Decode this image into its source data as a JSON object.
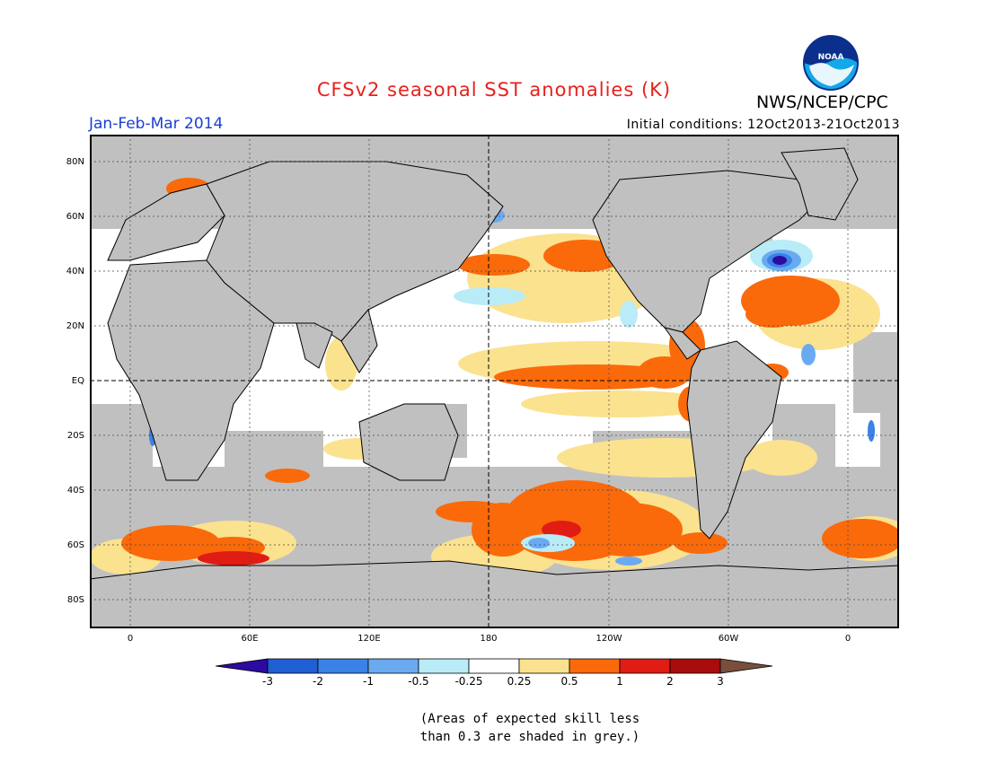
{
  "header": {
    "title": "CFSv2 seasonal SST anomalies (K)",
    "agency": "NWS/NCEP/CPC",
    "period": "Jan-Feb-Mar 2014",
    "initial_conditions": "Initial conditions: 12Oct2013-21Oct2013",
    "logo_text": "NOAA"
  },
  "map": {
    "lat_labels": [
      "80N",
      "60N",
      "40N",
      "20N",
      "EQ",
      "20S",
      "40S",
      "60S",
      "80S"
    ],
    "lon_labels": [
      "0",
      "60E",
      "120E",
      "180",
      "120W",
      "60W",
      "0"
    ],
    "colors": {
      "land": "#c0c0c0",
      "skill_grey": "#c0c0c0",
      "ocean_neutral": "#ffffff"
    }
  },
  "colorbar": {
    "labels": [
      "-3",
      "-2",
      "-1",
      "-0.5",
      "-0.25",
      "0.25",
      "0.5",
      "1",
      "2",
      "3"
    ],
    "colors": [
      "#2d0aa0",
      "#1f5fd4",
      "#3b82e6",
      "#6aaaf0",
      "#b9ecf7",
      "#ffffff",
      "#fbe28f",
      "#fa6a0a",
      "#e11c14",
      "#a80c0c",
      "#7a4e3c"
    ]
  },
  "note": {
    "line1": "(Areas of expected skill less",
    "line2": "than 0.3 are shaded in grey.)"
  }
}
